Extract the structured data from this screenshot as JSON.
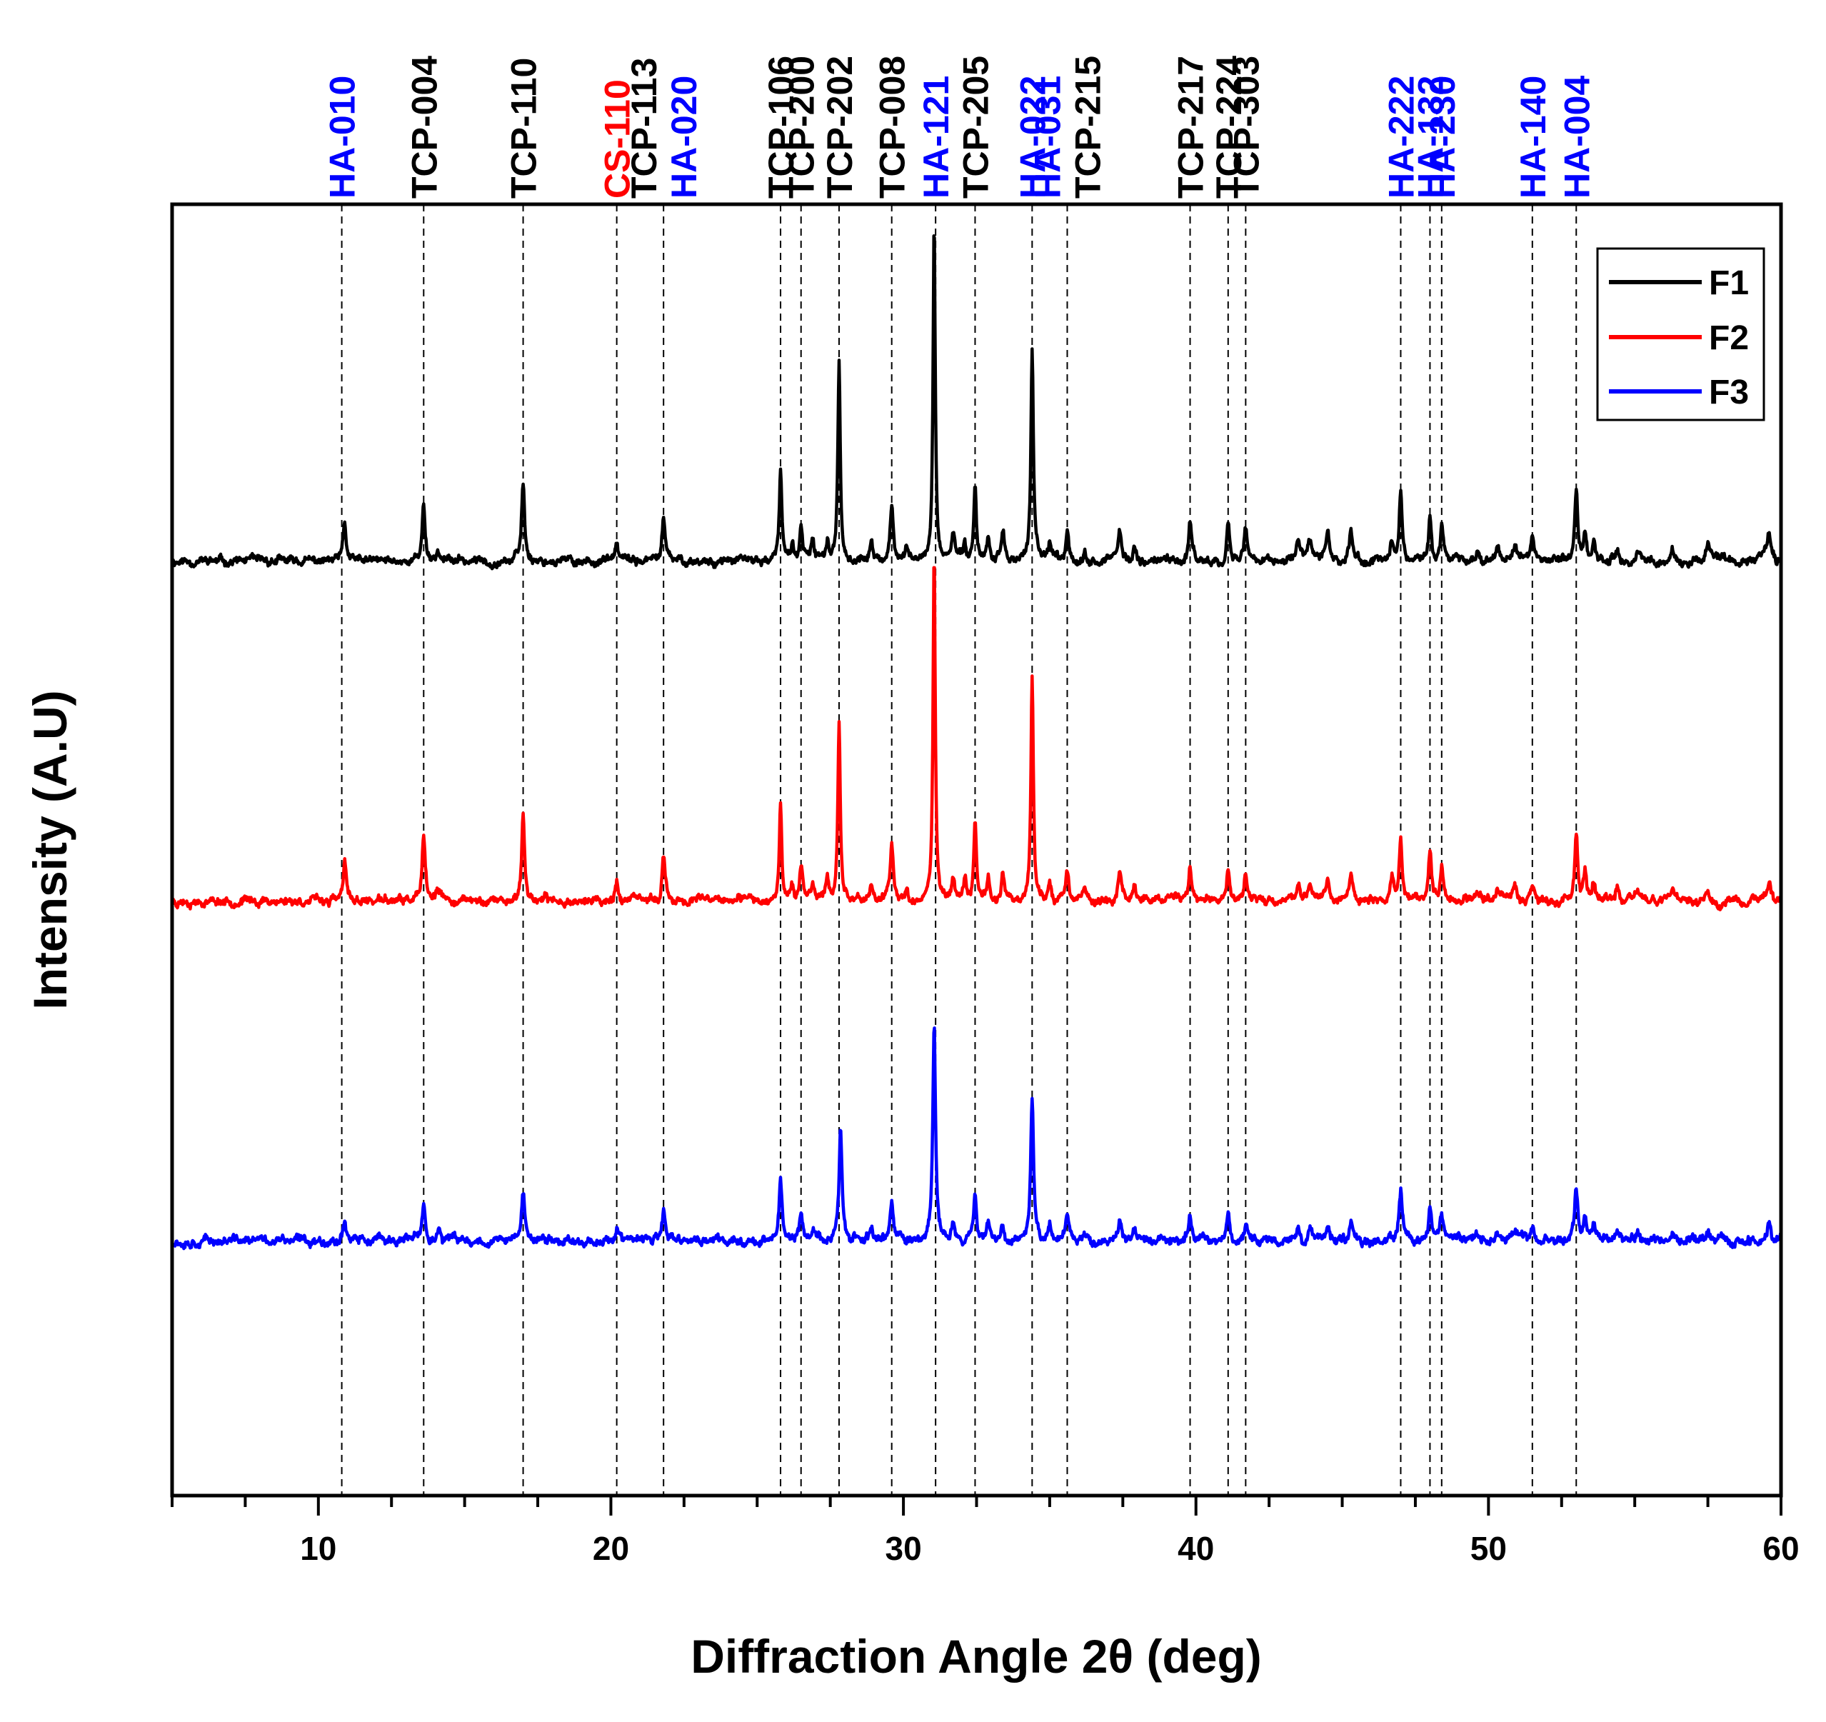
{
  "chart_data": {
    "type": "line",
    "title": "",
    "xlabel": "Diffraction Angle 2θ (deg)",
    "ylabel": "Intensity (A.U)",
    "xlim": [
      5,
      60
    ],
    "ylim": [
      -0.75,
      3.05
    ],
    "x_ticks": [
      10,
      20,
      30,
      40,
      50,
      60
    ],
    "x_tick_labels": [
      "10",
      "20",
      "30",
      "40",
      "50",
      "60"
    ],
    "grid": false,
    "legend_position": "top-right",
    "colors": {
      "F1": "#000000",
      "F2": "#ff0000",
      "F3": "#0000ff",
      "HA": "#0000ff",
      "TCP": "#000000",
      "CS": "#ff0000"
    },
    "series": [
      {
        "name": "F1",
        "color": "#000000",
        "baseline": 2.0,
        "noise": 0.012,
        "seed": 11,
        "peaks": [
          [
            10.9,
            0.11,
            0.12
          ],
          [
            13.6,
            0.17,
            0.12
          ],
          [
            14.1,
            0.03,
            0.15
          ],
          [
            17.0,
            0.23,
            0.12
          ],
          [
            20.2,
            0.05,
            0.12
          ],
          [
            21.8,
            0.13,
            0.12
          ],
          [
            25.8,
            0.27,
            0.1
          ],
          [
            26.2,
            0.05,
            0.1
          ],
          [
            26.5,
            0.1,
            0.12
          ],
          [
            26.9,
            0.05,
            0.12
          ],
          [
            27.4,
            0.06,
            0.12
          ],
          [
            27.8,
            0.58,
            0.1
          ],
          [
            28.9,
            0.05,
            0.12
          ],
          [
            29.6,
            0.16,
            0.12
          ],
          [
            30.1,
            0.04,
            0.12
          ],
          [
            31.05,
            1.0,
            0.09
          ],
          [
            31.7,
            0.08,
            0.12
          ],
          [
            32.1,
            0.06,
            0.12
          ],
          [
            32.45,
            0.23,
            0.1
          ],
          [
            32.9,
            0.07,
            0.12
          ],
          [
            33.4,
            0.09,
            0.12
          ],
          [
            34.4,
            0.62,
            0.1
          ],
          [
            35.0,
            0.05,
            0.12
          ],
          [
            35.6,
            0.1,
            0.12
          ],
          [
            36.2,
            0.04,
            0.12
          ],
          [
            37.4,
            0.09,
            0.12
          ],
          [
            37.9,
            0.05,
            0.12
          ],
          [
            39.8,
            0.11,
            0.13
          ],
          [
            41.1,
            0.11,
            0.12
          ],
          [
            41.7,
            0.1,
            0.12
          ],
          [
            43.5,
            0.06,
            0.15
          ],
          [
            43.9,
            0.05,
            0.15
          ],
          [
            44.5,
            0.08,
            0.15
          ],
          [
            45.3,
            0.08,
            0.15
          ],
          [
            46.7,
            0.06,
            0.15
          ],
          [
            47.0,
            0.2,
            0.12
          ],
          [
            48.0,
            0.14,
            0.12
          ],
          [
            48.4,
            0.1,
            0.12
          ],
          [
            49.6,
            0.03,
            0.15
          ],
          [
            50.3,
            0.05,
            0.15
          ],
          [
            50.9,
            0.04,
            0.15
          ],
          [
            51.5,
            0.06,
            0.15
          ],
          [
            53.0,
            0.21,
            0.12
          ],
          [
            53.3,
            0.08,
            0.12
          ],
          [
            53.6,
            0.06,
            0.12
          ],
          [
            54.4,
            0.05,
            0.15
          ],
          [
            55.1,
            0.03,
            0.15
          ],
          [
            56.3,
            0.03,
            0.15
          ],
          [
            57.5,
            0.04,
            0.15
          ],
          [
            59.6,
            0.08,
            0.15
          ]
        ]
      },
      {
        "name": "F2",
        "color": "#ff0000",
        "baseline": 1.0,
        "noise": 0.012,
        "seed": 23,
        "peaks": [
          [
            10.9,
            0.11,
            0.12
          ],
          [
            13.6,
            0.18,
            0.12
          ],
          [
            14.1,
            0.03,
            0.15
          ],
          [
            17.0,
            0.25,
            0.12
          ],
          [
            20.2,
            0.06,
            0.12
          ],
          [
            21.8,
            0.13,
            0.12
          ],
          [
            25.8,
            0.3,
            0.1
          ],
          [
            26.2,
            0.05,
            0.1
          ],
          [
            26.5,
            0.1,
            0.12
          ],
          [
            26.9,
            0.05,
            0.12
          ],
          [
            27.4,
            0.06,
            0.12
          ],
          [
            27.8,
            0.53,
            0.1
          ],
          [
            28.9,
            0.05,
            0.12
          ],
          [
            29.6,
            0.17,
            0.12
          ],
          [
            30.1,
            0.04,
            0.12
          ],
          [
            31.05,
            1.03,
            0.09
          ],
          [
            31.7,
            0.08,
            0.12
          ],
          [
            32.1,
            0.06,
            0.12
          ],
          [
            32.45,
            0.23,
            0.1
          ],
          [
            32.9,
            0.07,
            0.12
          ],
          [
            33.4,
            0.08,
            0.12
          ],
          [
            34.4,
            0.66,
            0.1
          ],
          [
            35.0,
            0.05,
            0.12
          ],
          [
            35.6,
            0.1,
            0.12
          ],
          [
            36.2,
            0.04,
            0.12
          ],
          [
            37.4,
            0.09,
            0.12
          ],
          [
            37.9,
            0.05,
            0.12
          ],
          [
            39.8,
            0.1,
            0.13
          ],
          [
            41.1,
            0.1,
            0.12
          ],
          [
            41.7,
            0.09,
            0.12
          ],
          [
            43.5,
            0.06,
            0.15
          ],
          [
            43.9,
            0.05,
            0.15
          ],
          [
            44.5,
            0.07,
            0.15
          ],
          [
            45.3,
            0.07,
            0.15
          ],
          [
            46.7,
            0.06,
            0.15
          ],
          [
            47.0,
            0.18,
            0.12
          ],
          [
            48.0,
            0.14,
            0.12
          ],
          [
            48.4,
            0.1,
            0.12
          ],
          [
            49.6,
            0.03,
            0.15
          ],
          [
            50.3,
            0.04,
            0.15
          ],
          [
            50.9,
            0.04,
            0.15
          ],
          [
            51.5,
            0.05,
            0.15
          ],
          [
            53.0,
            0.2,
            0.12
          ],
          [
            53.3,
            0.08,
            0.12
          ],
          [
            53.6,
            0.05,
            0.12
          ],
          [
            54.4,
            0.04,
            0.15
          ],
          [
            55.1,
            0.03,
            0.15
          ],
          [
            56.3,
            0.03,
            0.15
          ],
          [
            57.5,
            0.03,
            0.15
          ],
          [
            59.6,
            0.07,
            0.15
          ]
        ]
      },
      {
        "name": "F3",
        "color": "#0000ff",
        "baseline": 0.0,
        "noise": 0.013,
        "seed": 37,
        "peaks": [
          [
            10.9,
            0.06,
            0.15
          ],
          [
            13.6,
            0.1,
            0.14
          ],
          [
            14.1,
            0.03,
            0.15
          ],
          [
            17.0,
            0.14,
            0.14
          ],
          [
            20.2,
            0.04,
            0.12
          ],
          [
            21.8,
            0.08,
            0.13
          ],
          [
            25.8,
            0.18,
            0.12
          ],
          [
            26.5,
            0.07,
            0.13
          ],
          [
            26.9,
            0.04,
            0.12
          ],
          [
            27.85,
            0.34,
            0.12
          ],
          [
            28.9,
            0.04,
            0.13
          ],
          [
            29.6,
            0.11,
            0.13
          ],
          [
            31.05,
            0.63,
            0.11
          ],
          [
            31.7,
            0.05,
            0.13
          ],
          [
            32.45,
            0.15,
            0.12
          ],
          [
            32.9,
            0.05,
            0.13
          ],
          [
            33.4,
            0.05,
            0.13
          ],
          [
            34.4,
            0.42,
            0.12
          ],
          [
            35.0,
            0.05,
            0.13
          ],
          [
            35.6,
            0.07,
            0.13
          ],
          [
            37.4,
            0.06,
            0.14
          ],
          [
            37.9,
            0.03,
            0.13
          ],
          [
            39.8,
            0.07,
            0.14
          ],
          [
            41.1,
            0.07,
            0.13
          ],
          [
            41.7,
            0.06,
            0.13
          ],
          [
            43.5,
            0.04,
            0.15
          ],
          [
            43.9,
            0.03,
            0.15
          ],
          [
            44.5,
            0.05,
            0.15
          ],
          [
            45.3,
            0.05,
            0.15
          ],
          [
            47.0,
            0.14,
            0.13
          ],
          [
            48.0,
            0.09,
            0.13
          ],
          [
            48.4,
            0.07,
            0.13
          ],
          [
            49.6,
            0.02,
            0.15
          ],
          [
            50.3,
            0.03,
            0.15
          ],
          [
            50.9,
            0.03,
            0.15
          ],
          [
            51.5,
            0.04,
            0.15
          ],
          [
            53.0,
            0.15,
            0.13
          ],
          [
            53.3,
            0.06,
            0.13
          ],
          [
            53.6,
            0.04,
            0.13
          ],
          [
            54.4,
            0.03,
            0.15
          ],
          [
            55.1,
            0.02,
            0.15
          ],
          [
            56.3,
            0.02,
            0.15
          ],
          [
            57.5,
            0.02,
            0.15
          ],
          [
            59.6,
            0.06,
            0.15
          ]
        ]
      }
    ],
    "peak_annotations": [
      {
        "label": "HA-010",
        "x": 10.8,
        "phase": "HA"
      },
      {
        "label": "TCP-004",
        "x": 13.6,
        "phase": "TCP"
      },
      {
        "label": "TCP-110",
        "x": 17.0,
        "phase": "TCP"
      },
      {
        "label": "CS-110",
        "x": 20.2,
        "phase": "CS"
      },
      {
        "label": "TCP-113",
        "x": 21.8,
        "phase": "TCP"
      },
      {
        "label": "HA-020",
        "x": 21.8,
        "phase": "HA"
      },
      {
        "label": "TCP-106",
        "x": 25.8,
        "phase": "TCP"
      },
      {
        "label": "TCP-200",
        "x": 26.5,
        "phase": "TCP"
      },
      {
        "label": "TCP-202",
        "x": 27.8,
        "phase": "TCP"
      },
      {
        "label": "TCP-008",
        "x": 29.6,
        "phase": "TCP"
      },
      {
        "label": "HA-121",
        "x": 31.1,
        "phase": "HA"
      },
      {
        "label": "TCP-205",
        "x": 32.45,
        "phase": "TCP"
      },
      {
        "label": "HA-022",
        "x": 34.4,
        "phase": "HA"
      },
      {
        "label": "HA-031",
        "x": 35.6,
        "phase": "HA"
      },
      {
        "label": "TCP-215",
        "x": 35.6,
        "phase": "TCP"
      },
      {
        "label": "TCP-217",
        "x": 39.8,
        "phase": "TCP"
      },
      {
        "label": "TCP-224",
        "x": 41.1,
        "phase": "TCP"
      },
      {
        "label": "TCP-303",
        "x": 41.7,
        "phase": "TCP"
      },
      {
        "label": "HA-222",
        "x": 47.0,
        "phase": "HA"
      },
      {
        "label": "HA-132",
        "x": 48.0,
        "phase": "HA"
      },
      {
        "label": "HA-230",
        "x": 48.4,
        "phase": "HA"
      },
      {
        "label": "HA-140",
        "x": 51.5,
        "phase": "HA"
      },
      {
        "label": "HA-004",
        "x": 53.0,
        "phase": "HA"
      }
    ],
    "legend": [
      {
        "label": "F1",
        "color": "#000000"
      },
      {
        "label": "F2",
        "color": "#ff0000"
      },
      {
        "label": "F3",
        "color": "#0000ff"
      }
    ]
  }
}
